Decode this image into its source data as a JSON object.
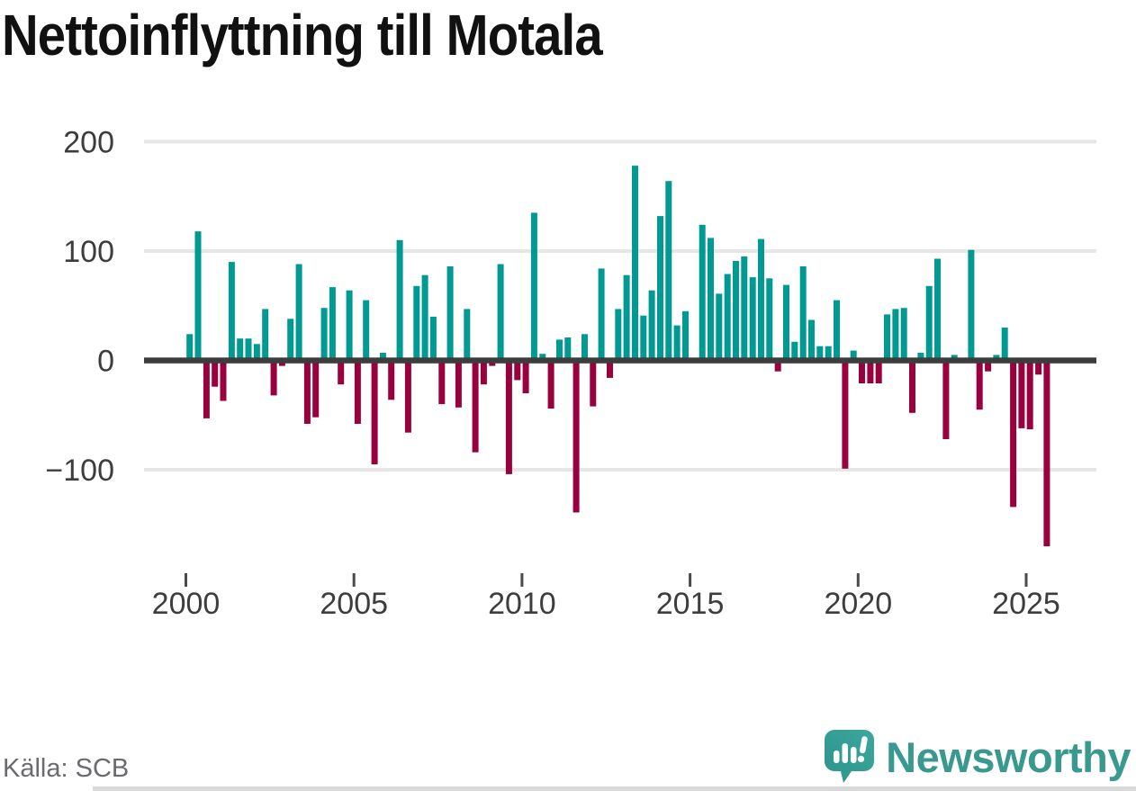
{
  "title": "Nettoinflyttning till Motala",
  "source": "Källa: SCB",
  "branding": {
    "logo_text": "Newsworthy"
  },
  "colors": {
    "positive": "#009a93",
    "negative": "#98003e",
    "grid": "#e6e6e6",
    "zero_line": "#3d3d3d",
    "tick": "#4a4a4a",
    "axis_text": "#3d3d3d",
    "title_text": "#111111",
    "source_text": "#6a6a6f",
    "brand": "#39998f"
  },
  "chart_data": {
    "type": "bar",
    "title": "Nettoinflyttning till Motala",
    "xlabel": "",
    "ylabel": "",
    "x_unit": "quarter",
    "start_quarter": "2000-Q1",
    "end_quarter": "2025-Q3",
    "xticks": [
      "2000",
      "2005",
      "2010",
      "2015",
      "2020",
      "2025"
    ],
    "yticks": [
      {
        "value": 200,
        "label": "200"
      },
      {
        "value": 100,
        "label": "100"
      },
      {
        "value": 0,
        "label": "0"
      },
      {
        "value": -100,
        "label": "−100"
      }
    ],
    "ylim": [
      -180,
      210
    ],
    "grid": "horizontal",
    "legend": "none",
    "series": [
      {
        "name": "Nettoinflyttning per kvartal",
        "values": [
          24,
          118,
          -53,
          -24,
          -37,
          90,
          20,
          20,
          15,
          47,
          -32,
          -5,
          38,
          88,
          -58,
          -52,
          48,
          67,
          -22,
          64,
          -58,
          55,
          -95,
          7,
          -36,
          110,
          -66,
          68,
          78,
          40,
          -40,
          86,
          -43,
          47,
          -84,
          -22,
          -5,
          88,
          -104,
          -18,
          -30,
          135,
          6,
          -44,
          19,
          21,
          -139,
          24,
          -42,
          84,
          -16,
          47,
          78,
          178,
          41,
          64,
          132,
          164,
          32,
          45,
          0,
          124,
          112,
          61,
          79,
          91,
          95,
          76,
          111,
          75,
          -10,
          69,
          17,
          86,
          37,
          13,
          13,
          55,
          -99,
          9,
          -21,
          -21,
          -21,
          42,
          47,
          48,
          -48,
          7,
          68,
          93,
          -72,
          5,
          0,
          101,
          -45,
          -10,
          5,
          30,
          -134,
          -62,
          -63,
          -13,
          -170
        ]
      }
    ]
  }
}
